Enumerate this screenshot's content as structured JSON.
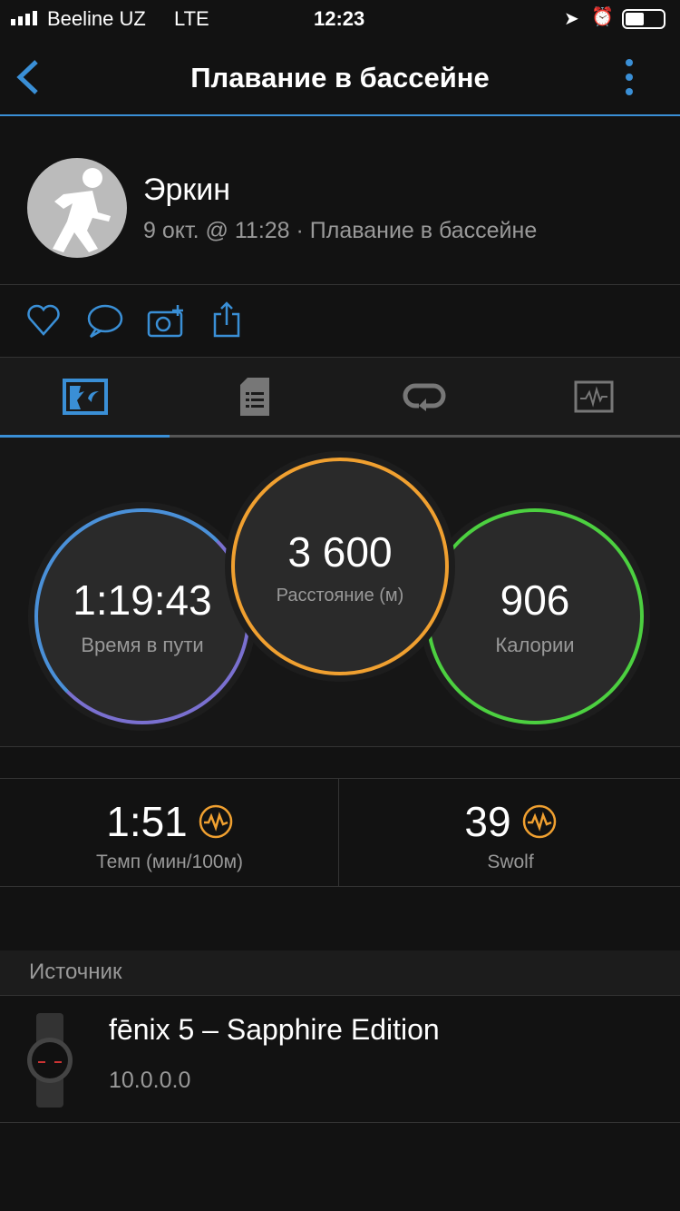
{
  "status_bar": {
    "carrier": "Beeline UZ",
    "network": "LTE",
    "time": "12:23"
  },
  "nav": {
    "title": "Плавание в бассейне"
  },
  "profile": {
    "name": "Эркин",
    "subtitle": "9 окт. @ 11:28 · Плавание в бассейне"
  },
  "actions": [
    "heart-icon",
    "comment-icon",
    "add-photo-icon",
    "share-icon"
  ],
  "tabs": [
    {
      "icon": "overview-icon",
      "active": true
    },
    {
      "icon": "details-icon"
    },
    {
      "icon": "laps-icon"
    },
    {
      "icon": "charts-icon"
    }
  ],
  "circles": {
    "time": {
      "value": "1:19:43",
      "label": "Время в пути"
    },
    "distance": {
      "value": "3 600",
      "label": "Расстояние (м)"
    },
    "calories": {
      "value": "906",
      "label": "Калории"
    }
  },
  "stats": [
    {
      "value": "1:51",
      "label": "Темп (мин/100м)"
    },
    {
      "value": "39",
      "label": "Swolf"
    }
  ],
  "source": {
    "header": "Источник",
    "device": "fēnix 5 – Sapphire Edition",
    "version": "10.0.0.0"
  },
  "colors": {
    "accent": "#3a8fd6",
    "orange": "#f0a030",
    "green": "#4cd040"
  }
}
